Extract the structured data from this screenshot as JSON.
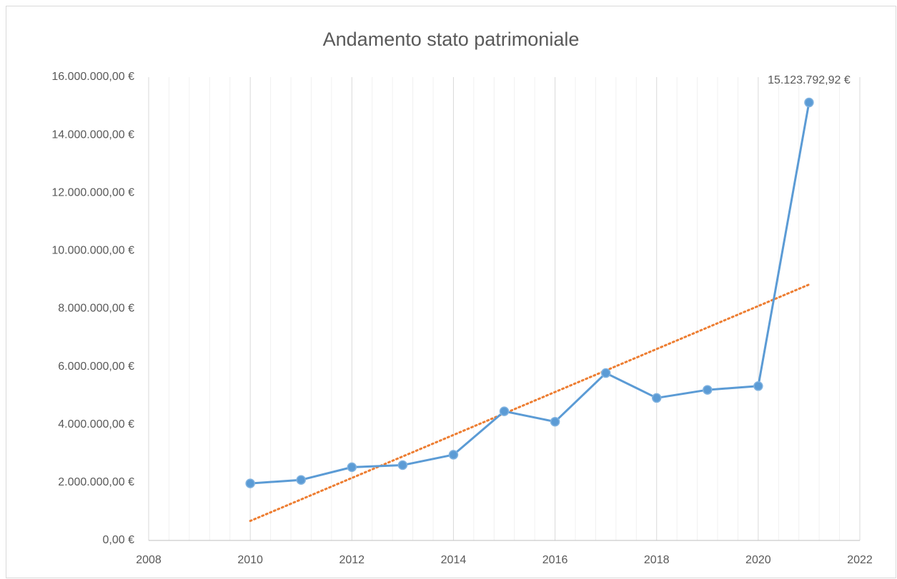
{
  "chart_data": {
    "type": "line",
    "title": "Andamento stato patrimoniale",
    "x": [
      2010,
      2011,
      2012,
      2013,
      2014,
      2015,
      2016,
      2017,
      2018,
      2019,
      2020,
      2021
    ],
    "series": [
      {
        "name": "Stato patrimoniale",
        "color": "#5b9bd5",
        "values": [
          1970000,
          2090000,
          2530000,
          2600000,
          2960000,
          4460000,
          4100000,
          5780000,
          4920000,
          5200000,
          5330000,
          15123792.92
        ],
        "value_labels": [
          null,
          null,
          null,
          null,
          null,
          null,
          null,
          null,
          null,
          null,
          null,
          "15.123.792,92 €"
        ]
      }
    ],
    "trendline": {
      "type": "linear",
      "color": "#ed7d31"
    },
    "xlim": [
      2008,
      2022
    ],
    "xticks": [
      2008,
      2010,
      2012,
      2014,
      2016,
      2018,
      2020,
      2022
    ],
    "ylim": [
      0,
      16000000
    ],
    "yticks": [
      {
        "value": 0,
        "label": "0,00 €"
      },
      {
        "value": 2000000,
        "label": "2.000.000,00 €"
      },
      {
        "value": 4000000,
        "label": "4.000.000,00 €"
      },
      {
        "value": 6000000,
        "label": "6.000.000,00 €"
      },
      {
        "value": 8000000,
        "label": "8.000.000,00 €"
      },
      {
        "value": 10000000,
        "label": "10.000.000,00 €"
      },
      {
        "value": 12000000,
        "label": "12.000.000,00 €"
      },
      {
        "value": 14000000,
        "label": "14.000.000,00 €"
      },
      {
        "value": 16000000,
        "label": "16.000.000,00 €"
      }
    ],
    "grid": true
  }
}
